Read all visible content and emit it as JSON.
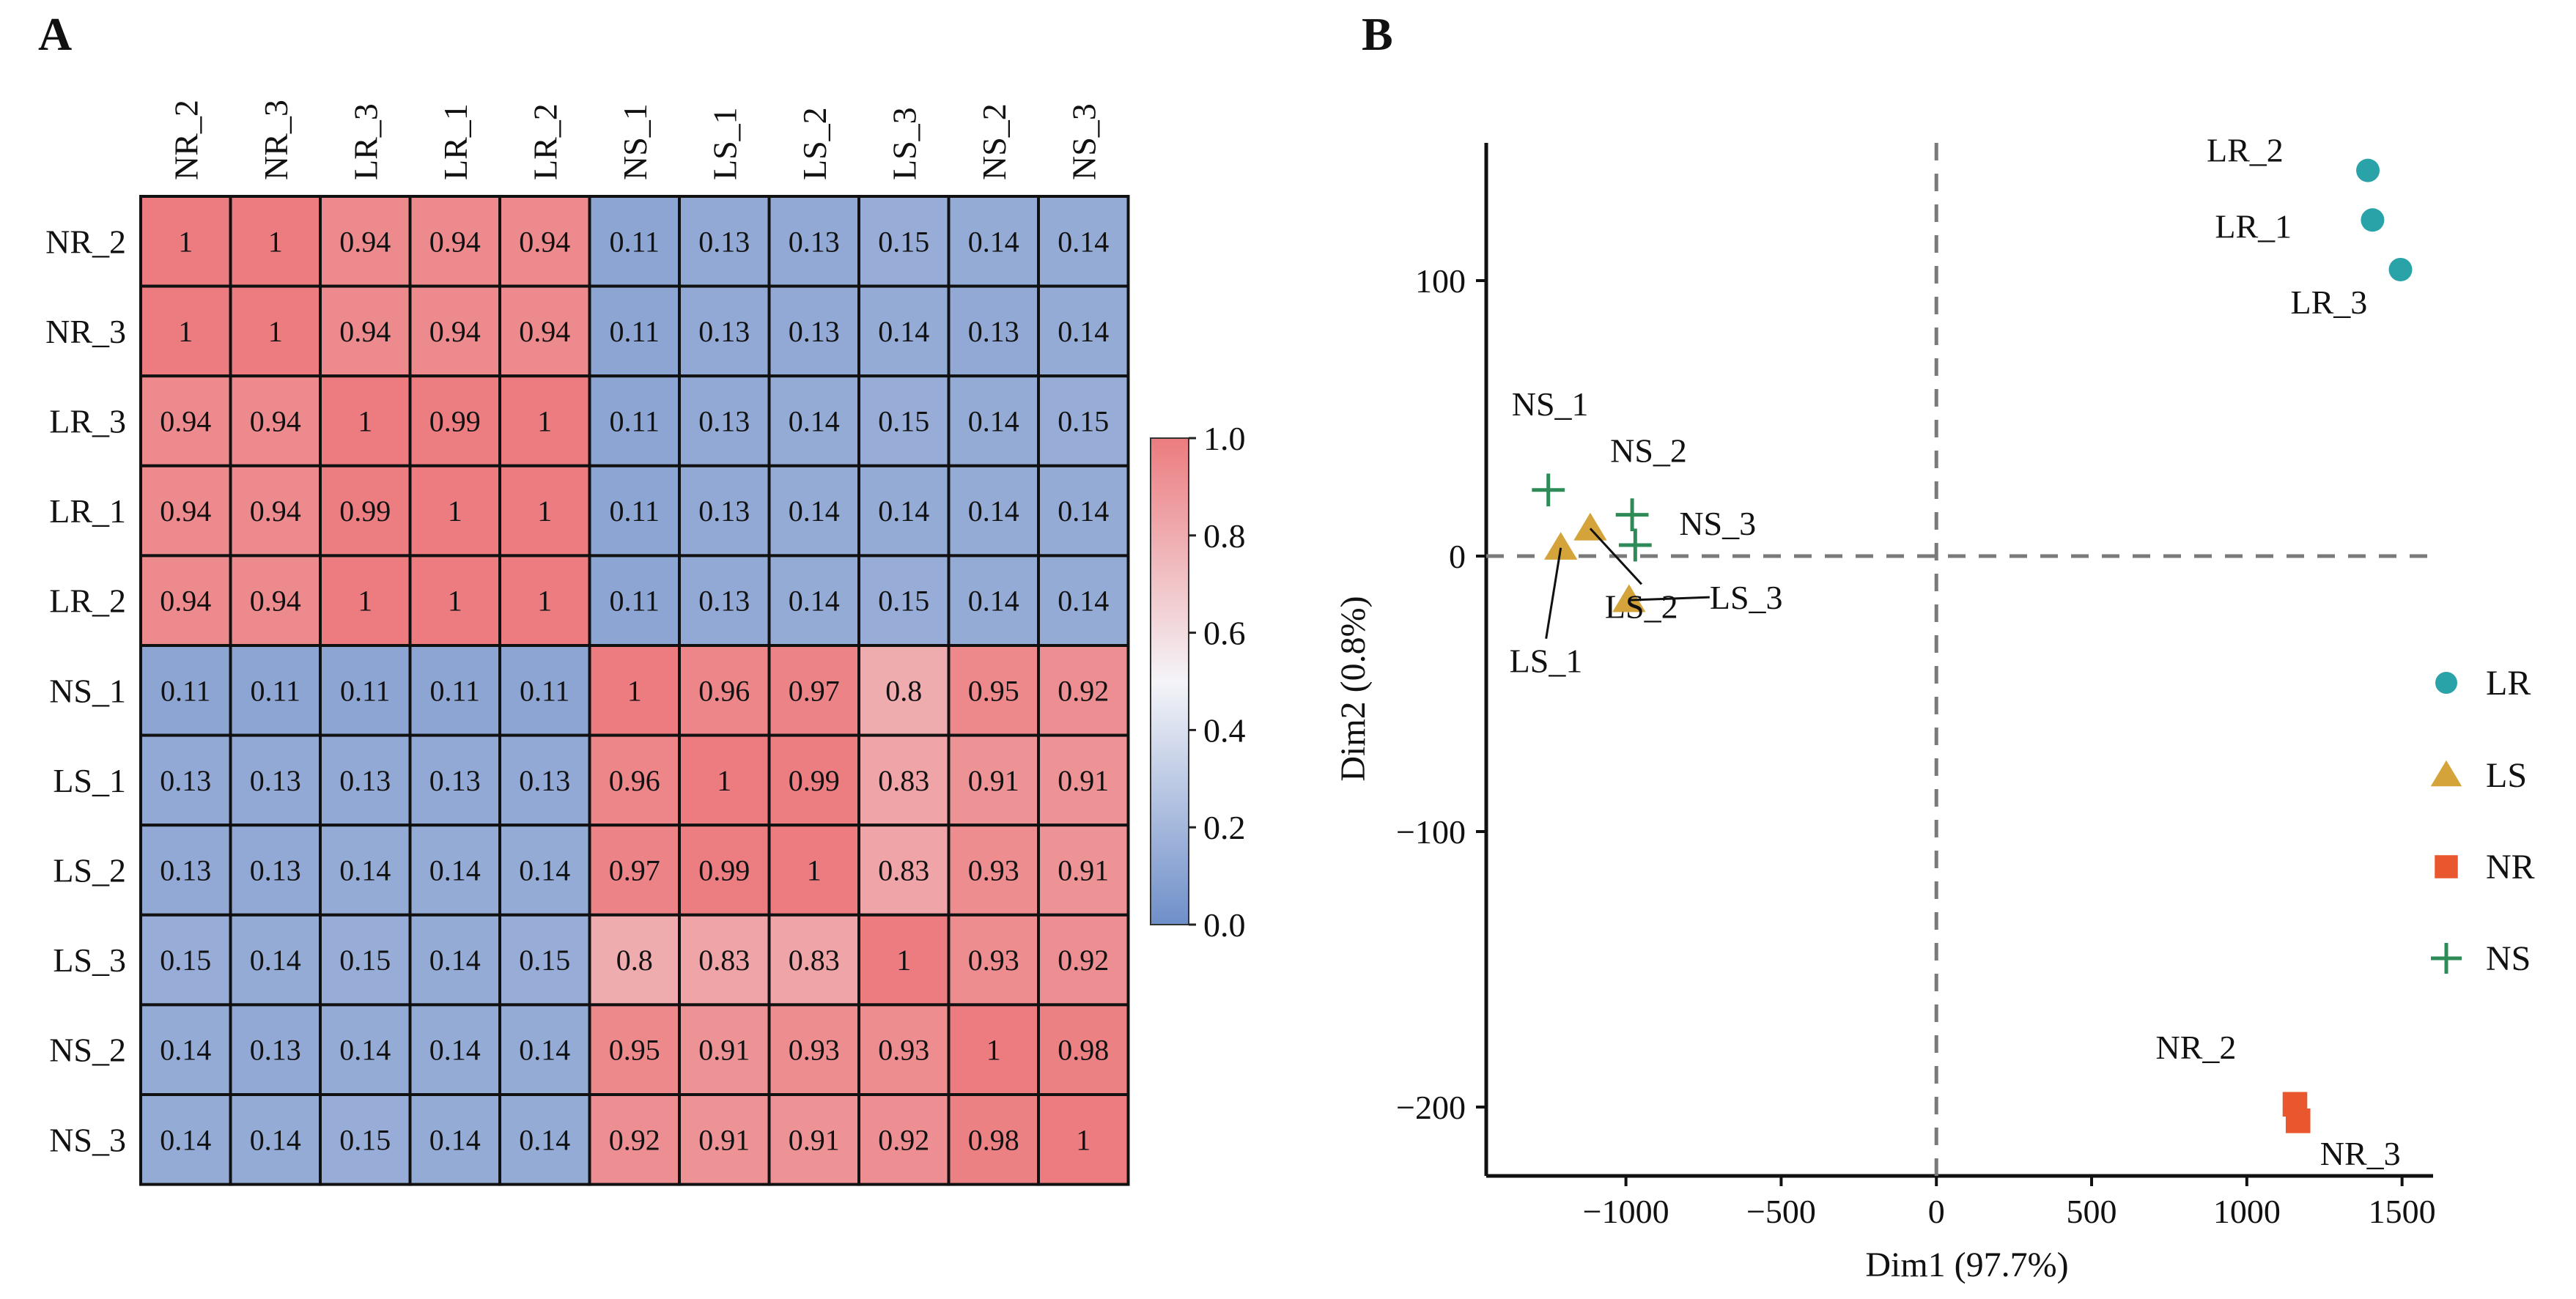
{
  "panels": {
    "a_letter": "A",
    "b_letter": "B"
  },
  "chart_data": [
    {
      "type": "heatmap",
      "rows": [
        "NR_2",
        "NR_3",
        "LR_3",
        "LR_1",
        "LR_2",
        "NS_1",
        "LS_1",
        "LS_2",
        "LS_3",
        "NS_2",
        "NS_3"
      ],
      "columns": [
        "NR_2",
        "NR_3",
        "LR_3",
        "LR_1",
        "LR_2",
        "NS_1",
        "LS_1",
        "LS_2",
        "LS_3",
        "NS_2",
        "NS_3"
      ],
      "values": [
        [
          "1",
          "1",
          "0.94",
          "0.94",
          "0.94",
          "0.11",
          "0.13",
          "0.13",
          "0.15",
          "0.14",
          "0.14"
        ],
        [
          "1",
          "1",
          "0.94",
          "0.94",
          "0.94",
          "0.11",
          "0.13",
          "0.13",
          "0.14",
          "0.13",
          "0.14"
        ],
        [
          "0.94",
          "0.94",
          "1",
          "0.99",
          "1",
          "0.11",
          "0.13",
          "0.14",
          "0.15",
          "0.14",
          "0.15"
        ],
        [
          "0.94",
          "0.94",
          "0.99",
          "1",
          "1",
          "0.11",
          "0.13",
          "0.14",
          "0.14",
          "0.14",
          "0.14"
        ],
        [
          "0.94",
          "0.94",
          "1",
          "1",
          "1",
          "0.11",
          "0.13",
          "0.14",
          "0.15",
          "0.14",
          "0.14"
        ],
        [
          "0.11",
          "0.11",
          "0.11",
          "0.11",
          "0.11",
          "1",
          "0.96",
          "0.97",
          "0.8",
          "0.95",
          "0.92"
        ],
        [
          "0.13",
          "0.13",
          "0.13",
          "0.13",
          "0.13",
          "0.96",
          "1",
          "0.99",
          "0.83",
          "0.91",
          "0.91"
        ],
        [
          "0.13",
          "0.13",
          "0.14",
          "0.14",
          "0.14",
          "0.97",
          "0.99",
          "1",
          "0.83",
          "0.93",
          "0.91"
        ],
        [
          "0.15",
          "0.14",
          "0.15",
          "0.14",
          "0.15",
          "0.8",
          "0.83",
          "0.83",
          "1",
          "0.93",
          "0.92"
        ],
        [
          "0.14",
          "0.13",
          "0.14",
          "0.14",
          "0.14",
          "0.95",
          "0.91",
          "0.93",
          "0.93",
          "1",
          "0.98"
        ],
        [
          "0.14",
          "0.14",
          "0.15",
          "0.14",
          "0.14",
          "0.92",
          "0.91",
          "0.91",
          "0.92",
          "0.98",
          "1"
        ]
      ],
      "color_scale": {
        "low": "#6f8fc9",
        "mid": "#f4f4f8",
        "high": "#ec7c7f",
        "range": [
          0,
          1
        ],
        "ticks": [
          "0.0",
          "0.2",
          "0.4",
          "0.6",
          "0.8",
          "1.0"
        ]
      },
      "colorbar_position": "right"
    },
    {
      "type": "scatter",
      "xlabel": "Dim1 (97.7%)",
      "ylabel": "Dim2 (0.8%)",
      "xlim": [
        -1450,
        1600
      ],
      "ylim": [
        -225,
        150
      ],
      "x_ticks": [
        "−1000",
        "−500",
        "0",
        "500",
        "1000",
        "1500"
      ],
      "y_ticks": [
        "100",
        "0",
        "−100",
        "−200"
      ],
      "reference_lines": {
        "x": 0,
        "y": 0,
        "style": "dashed"
      },
      "legend_position": "right",
      "series": [
        {
          "name": "LR",
          "marker": "circle",
          "color": "#2aa3a8",
          "points": [
            {
              "label": "LR_2",
              "x": 1390,
              "y": 140
            },
            {
              "label": "LR_1",
              "x": 1405,
              "y": 122
            },
            {
              "label": "LR_3",
              "x": 1495,
              "y": 104
            }
          ]
        },
        {
          "name": "LS",
          "marker": "triangle",
          "color": "#d4a43a",
          "points": [
            {
              "label": "LS_1",
              "x": -1210,
              "y": 3
            },
            {
              "label": "LS_2",
              "x": -1115,
              "y": 10
            },
            {
              "label": "LS_3",
              "x": -990,
              "y": -16
            }
          ]
        },
        {
          "name": "NR",
          "marker": "square",
          "color": "#e8572d",
          "points": [
            {
              "label": "NR_2",
              "x": 1155,
              "y": -199
            },
            {
              "label": "NR_3",
              "x": 1165,
              "y": -205
            }
          ]
        },
        {
          "name": "NS",
          "marker": "plus",
          "color": "#2e8b57",
          "points": [
            {
              "label": "NS_1",
              "x": -1250,
              "y": 24
            },
            {
              "label": "NS_2",
              "x": -980,
              "y": 15
            },
            {
              "label": "NS_3",
              "x": -970,
              "y": 4
            }
          ]
        }
      ]
    }
  ]
}
